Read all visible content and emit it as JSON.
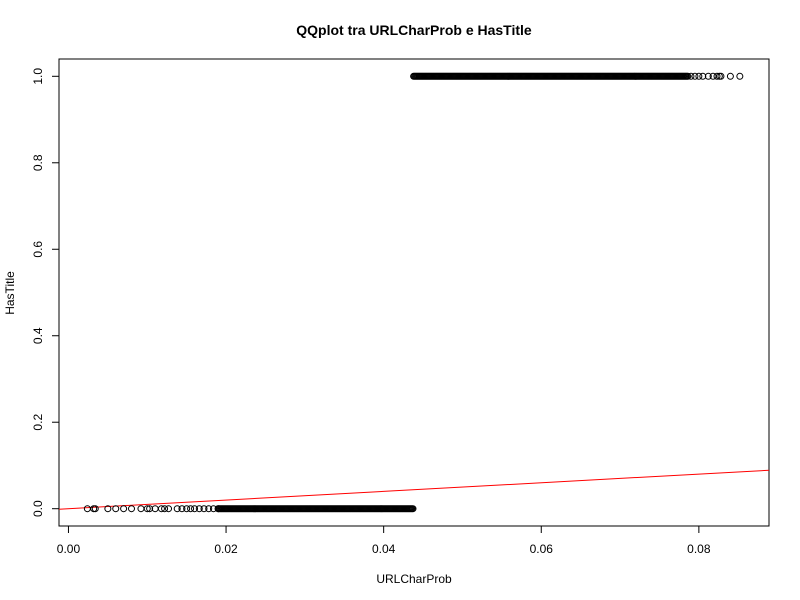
{
  "chart_data": {
    "type": "scatter",
    "title": "QQplot tra URLCharProb e HasTitle",
    "xlabel": "URLCharProb",
    "ylabel": "HasTitle",
    "xlim": [
      -0.0012,
      0.0889
    ],
    "ylim": [
      -0.04,
      1.04
    ],
    "xticks": [
      0.0,
      0.02,
      0.04,
      0.06,
      0.08
    ],
    "xtick_labels": [
      "0.00",
      "0.02",
      "0.04",
      "0.06",
      "0.08"
    ],
    "yticks": [
      0.0,
      0.2,
      0.4,
      0.6,
      0.8,
      1.0
    ],
    "ytick_labels": [
      "0.0",
      "0.2",
      "0.4",
      "0.6",
      "0.8",
      "1.0"
    ],
    "grid": false,
    "series": [
      {
        "marker": "open-circle",
        "color": "#000000",
        "groups": [
          {
            "y": 0,
            "x": [
              0.0024,
              0.0032,
              0.0034,
              0.005,
              0.006,
              0.007,
              0.008,
              0.0092,
              0.01,
              0.0103,
              0.011,
              0.0118,
              0.0122,
              0.0127,
              0.0138,
              0.0144,
              0.015,
              0.0155,
              0.016,
              0.0166,
              0.0172,
              0.0178,
              0.0184,
              0.019
            ],
            "dense_range": [
              0.019,
              0.0438
            ]
          },
          {
            "y": 1,
            "dense_range": [
              0.0438,
              0.0787
            ],
            "x": [
              0.079,
              0.0795,
              0.08,
              0.0805,
              0.0812,
              0.0818,
              0.0823,
              0.0826,
              0.0828,
              0.084,
              0.0852
            ]
          }
        ]
      }
    ],
    "reference_line": {
      "color": "#ff0000",
      "slope": 1,
      "intercept": 0
    }
  }
}
